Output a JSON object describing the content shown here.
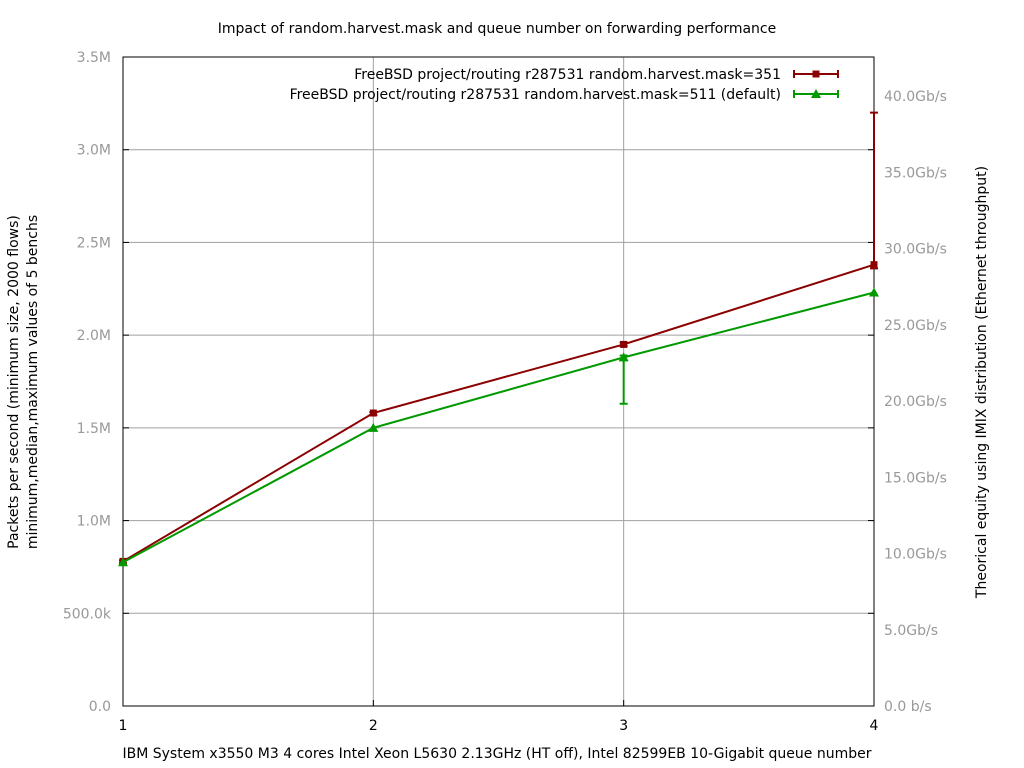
{
  "chart_data": {
    "type": "line",
    "title": "Impact of random.harvest.mask and queue number on forwarding performance",
    "xlabel": "IBM System x3550 M3 4 cores Intel Xeon L5630 2.13GHz (HT off), Intel 82599EB 10-Gigabit queue number",
    "ylabel_line1": "Packets per second (minimum size, 2000 flows)",
    "ylabel_line2": "minimum,median,maximum values of 5 benchs",
    "y2label": "Theorical equity using IMIX distribution (Ethernet throughput)",
    "x": [
      1,
      2,
      3,
      4
    ],
    "xlim": [
      1,
      4
    ],
    "ylim": [
      0,
      3500000
    ],
    "y2lim": [
      0,
      42.56
    ],
    "xticks": [
      "1",
      "2",
      "3",
      "4"
    ],
    "yticks": [
      {
        "value": 0,
        "label": "0.0"
      },
      {
        "value": 500000,
        "label": "500.0k"
      },
      {
        "value": 1000000,
        "label": "1.0M"
      },
      {
        "value": 1500000,
        "label": "1.5M"
      },
      {
        "value": 2000000,
        "label": "2.0M"
      },
      {
        "value": 2500000,
        "label": "2.5M"
      },
      {
        "value": 3000000,
        "label": "3.0M"
      },
      {
        "value": 3500000,
        "label": "3.5M"
      }
    ],
    "y2ticks": [
      {
        "value": 0,
        "label": "0.0 b/s"
      },
      {
        "value": 5,
        "label": "5.0Gb/s"
      },
      {
        "value": 10,
        "label": "10.0Gb/s"
      },
      {
        "value": 15,
        "label": "15.0Gb/s"
      },
      {
        "value": 20,
        "label": "20.0Gb/s"
      },
      {
        "value": 25,
        "label": "25.0Gb/s"
      },
      {
        "value": 30,
        "label": "30.0Gb/s"
      },
      {
        "value": 35,
        "label": "35.0Gb/s"
      },
      {
        "value": 40,
        "label": "40.0Gb/s"
      }
    ],
    "grid": true,
    "legend_position": "top-right",
    "series": [
      {
        "name": "FreeBSD project/routing r287531 random.harvest.mask=351",
        "color": "#8b0000",
        "marker": "square",
        "values": [
          780000,
          1580000,
          1950000,
          2380000
        ],
        "min": [
          770000,
          1570000,
          1940000,
          2360000
        ],
        "max": [
          785000,
          1585000,
          1960000,
          3200000
        ]
      },
      {
        "name": "FreeBSD project/routing r287531 random.harvest.mask=511 (default)",
        "color": "#009900",
        "marker": "triangle",
        "values": [
          775000,
          1500000,
          1880000,
          2230000
        ],
        "min": [
          770000,
          1495000,
          1630000,
          2225000
        ],
        "max": [
          780000,
          1505000,
          1890000,
          2235000
        ]
      }
    ]
  }
}
